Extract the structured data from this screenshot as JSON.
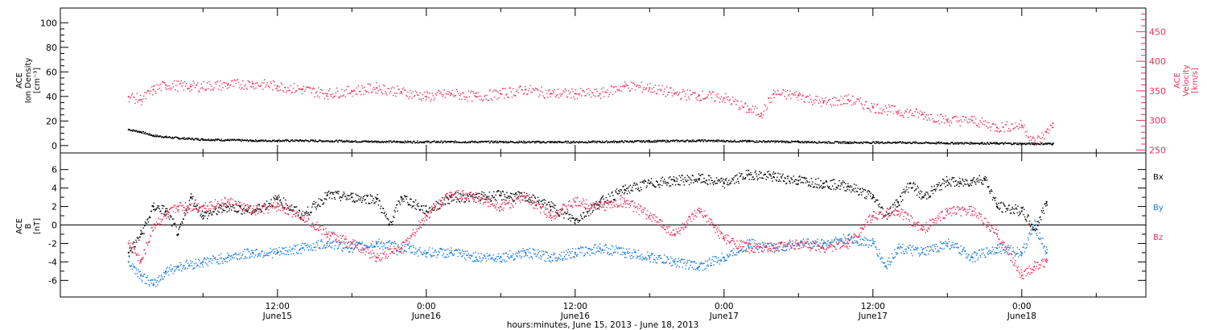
{
  "chart_data": [
    {
      "type": "scatter",
      "panel": "top",
      "ylabel_left": [
        "ACE",
        "Ion Density",
        "[cm⁻³]"
      ],
      "ylabel_right": [
        "ACE",
        "Velocity",
        "[km/s]"
      ],
      "ylim_left": [
        -6,
        112
      ],
      "ylim_right": [
        245,
        490
      ],
      "yticks_left": [
        "0",
        "20",
        "40",
        "60",
        "80",
        "100"
      ],
      "yticks_right": [
        "250",
        "300",
        "350",
        "400",
        "450"
      ],
      "colors": {
        "density": "#000000",
        "velocity": "#e8325a"
      },
      "series": [
        {
          "key": "density",
          "axis": "left",
          "x": [
            0,
            1,
            2,
            3,
            4,
            6,
            8,
            10,
            12,
            14,
            18,
            22,
            26,
            30,
            34,
            38,
            42,
            46,
            50,
            54,
            58,
            62,
            66,
            68,
            70,
            72,
            73,
            74,
            74.5
          ],
          "y": [
            13,
            11,
            8,
            7,
            6,
            5,
            4.5,
            4,
            4,
            4,
            3.5,
            3,
            3,
            3,
            2.8,
            3,
            3.5,
            4,
            3.5,
            3,
            2.5,
            2.5,
            2,
            2,
            1.8,
            1.5,
            1.5,
            1.5,
            1.5
          ]
        },
        {
          "key": "velocity",
          "axis": "right",
          "x": [
            0,
            1,
            2,
            3,
            5,
            8,
            10,
            12,
            14,
            16,
            18,
            20,
            22,
            24,
            26,
            28,
            30,
            32,
            34,
            36,
            38,
            40,
            42,
            44,
            46,
            48,
            50,
            51,
            52,
            54,
            56,
            58,
            60,
            62,
            64,
            66,
            68,
            70,
            72,
            73,
            74,
            74.5
          ],
          "y": [
            340,
            335,
            352,
            360,
            357,
            360,
            362,
            358,
            352,
            345,
            350,
            355,
            348,
            340,
            345,
            340,
            345,
            352,
            345,
            345,
            345,
            358,
            355,
            345,
            342,
            338,
            318,
            312,
            345,
            342,
            330,
            335,
            322,
            315,
            310,
            300,
            300,
            288,
            292,
            262,
            280,
            295
          ]
        }
      ]
    },
    {
      "type": "scatter",
      "panel": "bottom",
      "ylabel": [
        "ACE",
        "B",
        "[nT]"
      ],
      "ylim": [
        -7.8,
        7.8
      ],
      "yticks": [
        "-6",
        "-4",
        "-2",
        "0",
        "2",
        "4",
        "6"
      ],
      "legend": [
        "Bx",
        "By",
        "Bz"
      ],
      "colors": {
        "bx": "#000000",
        "by": "#1a7be0",
        "bz": "#e8325a"
      },
      "series": [
        {
          "key": "bx",
          "x": [
            0,
            1,
            2,
            3,
            4,
            5,
            6,
            8,
            10,
            12,
            14,
            16,
            18,
            20,
            21,
            22,
            24,
            26,
            28,
            30,
            32,
            34,
            36,
            38,
            40,
            42,
            44,
            46,
            48,
            50,
            52,
            54,
            56,
            58,
            60,
            61,
            62,
            63,
            64,
            66,
            67,
            68,
            69,
            70,
            72,
            73,
            74
          ],
          "y": [
            -3,
            -1,
            2,
            1.5,
            -1,
            3,
            1,
            2,
            1.5,
            2.8,
            1,
            3.2,
            3,
            2.8,
            0,
            3,
            1.5,
            3,
            3,
            3.2,
            3,
            2,
            0.5,
            2.5,
            3.8,
            4.5,
            4.8,
            5,
            4.5,
            5.5,
            5.2,
            4.8,
            4.5,
            4.2,
            3,
            1,
            2.5,
            4.5,
            3,
            4.8,
            4.5,
            4.8,
            5,
            2,
            1.5,
            -0.5,
            2.5
          ]
        },
        {
          "key": "by",
          "x": [
            0,
            1,
            2,
            3,
            4,
            6,
            8,
            10,
            12,
            14,
            16,
            18,
            20,
            22,
            24,
            26,
            28,
            30,
            32,
            34,
            36,
            38,
            40,
            42,
            44,
            46,
            48,
            50,
            52,
            54,
            56,
            58,
            60,
            61,
            62,
            64,
            66,
            68,
            70,
            72,
            73,
            74
          ],
          "y": [
            -4,
            -5.5,
            -6.5,
            -5,
            -4.5,
            -4,
            -3.5,
            -3,
            -3,
            -2.5,
            -2,
            -2.5,
            -2,
            -2.5,
            -3,
            -3,
            -3.5,
            -3.5,
            -3,
            -3.5,
            -3,
            -2.5,
            -3,
            -3.5,
            -4,
            -4.5,
            -3.5,
            -2,
            -2.5,
            -2,
            -2,
            -1.5,
            -2,
            -4.5,
            -2.5,
            -3,
            -2,
            -3.5,
            -2.5,
            -3,
            0,
            -3
          ]
        },
        {
          "key": "bz",
          "x": [
            0,
            1,
            2,
            3,
            4,
            6,
            8,
            10,
            12,
            14,
            16,
            18,
            20,
            22,
            24,
            26,
            28,
            30,
            32,
            34,
            36,
            38,
            40,
            42,
            44,
            46,
            48,
            50,
            52,
            54,
            56,
            58,
            60,
            62,
            64,
            66,
            68,
            70,
            72,
            73,
            74
          ],
          "y": [
            -2,
            -4,
            0,
            1,
            2,
            2,
            2.5,
            1.5,
            2,
            1,
            -1,
            -2,
            -3.5,
            -2.5,
            1,
            3.5,
            3,
            2,
            3,
            1,
            2.5,
            2,
            2.5,
            1,
            -1,
            1.5,
            -1.5,
            -2.5,
            -2.5,
            -2,
            -2.5,
            -2,
            1,
            1.5,
            -0.5,
            1.5,
            1.5,
            -1,
            -5.5,
            -4.5,
            -4
          ]
        }
      ]
    }
  ],
  "xaxis": {
    "title": "hours:minutes, June 15, 2013 - June 18, 2013",
    "range_hours": [
      -5.5,
      82
    ],
    "ticks": [
      {
        "hour": 12,
        "time": "12:00",
        "day": "June15"
      },
      {
        "hour": 24,
        "time": "0:00",
        "day": "June16"
      },
      {
        "hour": 36,
        "time": "12:00",
        "day": "June16"
      },
      {
        "hour": 48,
        "time": "0:00",
        "day": "June17"
      },
      {
        "hour": 60,
        "time": "12:00",
        "day": "June17"
      },
      {
        "hour": 72,
        "time": "0:00",
        "day": "June18"
      }
    ]
  }
}
